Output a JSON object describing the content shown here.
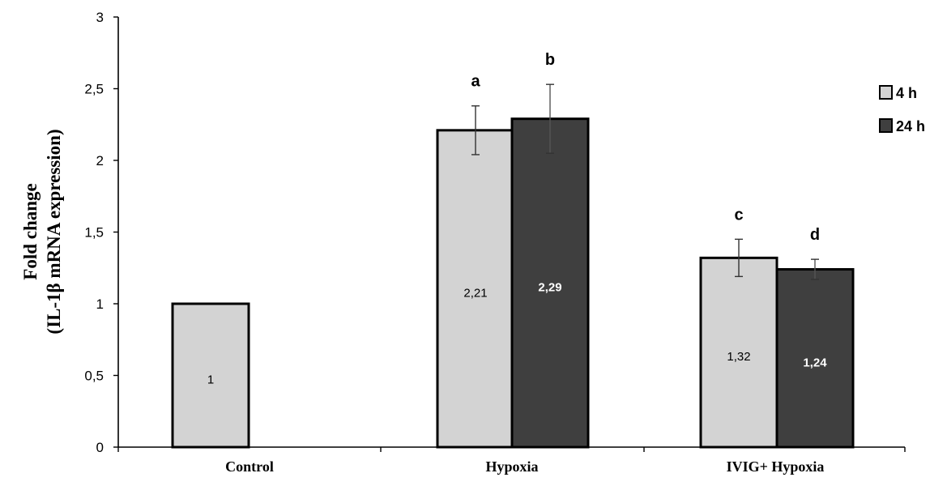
{
  "chart_data": {
    "type": "bar",
    "ylabel_lines": [
      "Fold change",
      "(IL-1β mRNA expression)"
    ],
    "xlabel": "",
    "ylim": [
      0,
      3
    ],
    "ytick_labels": [
      "0",
      "0,5",
      "1",
      "1,5",
      "2",
      "2,5",
      "3"
    ],
    "categories": [
      "Control",
      "Hypoxia",
      "IVIG+ Hypoxia"
    ],
    "series": [
      {
        "name": "4 h",
        "color": "#d3d3d3",
        "values": [
          1,
          2.21,
          1.32
        ],
        "errors": [
          null,
          0.17,
          0.13
        ],
        "value_labels": [
          "1",
          "2,21",
          "1,32"
        ],
        "sig_labels": [
          "",
          "a",
          "c"
        ]
      },
      {
        "name": "24 h",
        "color": "#3f3f3f",
        "values": [
          null,
          2.29,
          1.24
        ],
        "errors": [
          null,
          0.24,
          0.07
        ],
        "value_labels": [
          "",
          "2,29",
          "1,24"
        ],
        "sig_labels": [
          "",
          "b",
          "d"
        ]
      }
    ],
    "legend_position": "top-right",
    "grid": false
  }
}
